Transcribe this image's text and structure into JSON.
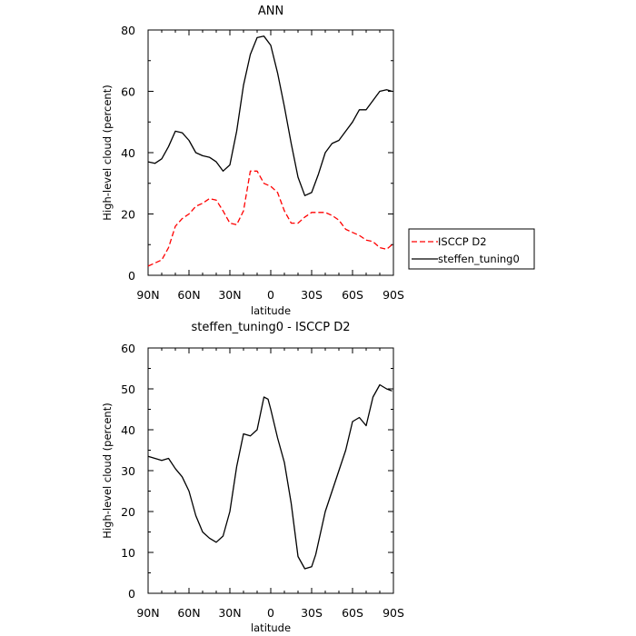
{
  "chart_data": [
    {
      "type": "line",
      "title": "ANN",
      "xlabel": "latitude",
      "ylabel": "High-level cloud (percent)",
      "xlim": [
        90,
        -90
      ],
      "ylim": [
        0,
        80
      ],
      "x_ticks": [
        {
          "value": 90,
          "label": "90N"
        },
        {
          "value": 60,
          "label": "60N"
        },
        {
          "value": 30,
          "label": "30N"
        },
        {
          "value": 0,
          "label": "0"
        },
        {
          "value": -30,
          "label": "30S"
        },
        {
          "value": -60,
          "label": "60S"
        },
        {
          "value": -90,
          "label": "90S"
        }
      ],
      "y_ticks": [
        0,
        20,
        40,
        60,
        80
      ],
      "legend_position": "right",
      "series": [
        {
          "name": "ISCCP D2",
          "color": "#ff0000",
          "dash": "dashed",
          "x": [
            90,
            85,
            80,
            75,
            70,
            65,
            60,
            55,
            50,
            45,
            40,
            35,
            30,
            25,
            20,
            15,
            10,
            5,
            0,
            -5,
            -10,
            -15,
            -20,
            -25,
            -30,
            -35,
            -40,
            -45,
            -50,
            -55,
            -60,
            -65,
            -70,
            -75,
            -80,
            -85,
            -89
          ],
          "y": [
            3,
            4,
            5,
            9,
            16,
            18.5,
            20,
            22.5,
            23.5,
            25,
            24.5,
            21,
            17,
            16.5,
            21,
            34,
            34,
            30,
            29,
            27,
            21,
            17,
            17,
            19,
            20.5,
            20.5,
            20.5,
            19.5,
            18,
            15,
            14,
            13,
            11.5,
            11,
            9,
            8.5,
            10
          ]
        },
        {
          "name": "steffen_tuning0",
          "color": "#000000",
          "dash": "solid",
          "x": [
            90,
            85,
            80,
            75,
            70,
            65,
            60,
            55,
            50,
            45,
            40,
            35,
            30,
            25,
            20,
            15,
            10,
            5,
            0,
            -5,
            -10,
            -15,
            -20,
            -25,
            -30,
            -35,
            -40,
            -45,
            -50,
            -55,
            -60,
            -65,
            -70,
            -75,
            -80,
            -85,
            -89
          ],
          "y": [
            37,
            36.5,
            38,
            42,
            47,
            46.5,
            44,
            40,
            39,
            38.5,
            37,
            34,
            36,
            47,
            62,
            72,
            77.5,
            78,
            75,
            66,
            55,
            43,
            32,
            26,
            27,
            33,
            40,
            43,
            44,
            47,
            50,
            54,
            54,
            57,
            60,
            60.5,
            60
          ]
        }
      ]
    },
    {
      "type": "line",
      "title": "steffen_tuning0 - ISCCP D2",
      "xlabel": "latitude",
      "ylabel": "High-level cloud (percent)",
      "xlim": [
        90,
        -90
      ],
      "ylim": [
        0,
        60
      ],
      "x_ticks": [
        {
          "value": 90,
          "label": "90N"
        },
        {
          "value": 60,
          "label": "60N"
        },
        {
          "value": 30,
          "label": "30N"
        },
        {
          "value": 0,
          "label": "0"
        },
        {
          "value": -30,
          "label": "30S"
        },
        {
          "value": -60,
          "label": "60S"
        },
        {
          "value": -90,
          "label": "90S"
        }
      ],
      "y_ticks": [
        0,
        10,
        20,
        30,
        40,
        50,
        60
      ],
      "series": [
        {
          "color": "#000000",
          "dash": "solid",
          "x": [
            90,
            85,
            80,
            75,
            70,
            65,
            60,
            55,
            50,
            45,
            40,
            35,
            30,
            25,
            20,
            15,
            10,
            5,
            2,
            0,
            -5,
            -10,
            -15,
            -20,
            -25,
            -30,
            -33,
            -36,
            -40,
            -45,
            -50,
            -55,
            -60,
            -65,
            -70,
            -75,
            -80,
            -85,
            -89
          ],
          "y": [
            33.5,
            33,
            32.5,
            33,
            30.5,
            28.5,
            25,
            19,
            15,
            13.5,
            12.5,
            14,
            20,
            31,
            39,
            38.5,
            40,
            48,
            47.5,
            45,
            38,
            32,
            22,
            9,
            6,
            6.5,
            9.5,
            14,
            20,
            25,
            30,
            35,
            42,
            43,
            41,
            48,
            51,
            50,
            49.5
          ]
        }
      ]
    }
  ]
}
